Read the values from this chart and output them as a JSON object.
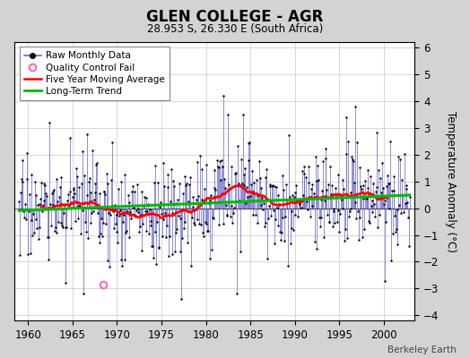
{
  "title": "GLEN COLLEGE - AGR",
  "subtitle": "28.953 S, 26.330 E (South Africa)",
  "ylabel": "Temperature Anomaly (°C)",
  "watermark": "Berkeley Earth",
  "ylim": [
    -4.2,
    6.2
  ],
  "xlim": [
    1958.5,
    2003.5
  ],
  "yticks": [
    -4,
    -3,
    -2,
    -1,
    0,
    1,
    2,
    3,
    4,
    5,
    6
  ],
  "xticks": [
    1960,
    1965,
    1970,
    1975,
    1980,
    1985,
    1990,
    1995,
    2000
  ],
  "bg_color": "#d3d3d3",
  "plot_bg_color": "#ffffff",
  "raw_color": "#6666cc",
  "raw_marker_color": "#000000",
  "qc_fail_color": "#ff69b4",
  "moving_avg_color": "#ff0000",
  "trend_color": "#00bb00",
  "qc_fail_x": 1968.42,
  "qc_fail_y": -2.85,
  "seed": 17
}
